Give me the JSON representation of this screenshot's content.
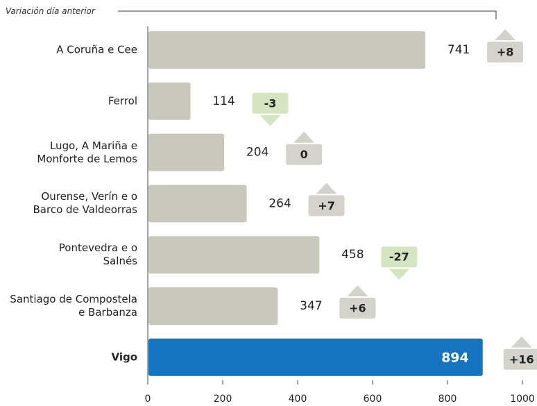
{
  "chart_data": {
    "type": "bar",
    "orientation": "horizontal",
    "subtitle": "Variación día anterior",
    "categories": [
      "A Coruña e Cee",
      "Ferrol",
      "Lugo, A Mariña e\nMonforte de Lemos",
      "Ourense, Verín e o\nBarco de Valdeorras",
      "Pontevedra e o\nSalnés",
      "Santiago de Compostela\ne Barbanza",
      "Vigo"
    ],
    "values": [
      741,
      114,
      204,
      264,
      458,
      347,
      894
    ],
    "colors": [
      "#c9c8bd",
      "#c9c8bd",
      "#c9c8bd",
      "#c9c8bd",
      "#c9c8bd",
      "#c9c8bd",
      "#1474bf"
    ],
    "highlight": [
      false,
      false,
      false,
      false,
      false,
      false,
      true
    ],
    "changes": {
      "values": [
        8,
        -3,
        0,
        7,
        -27,
        6,
        16
      ],
      "value_labels": [
        "+8",
        "-3",
        "0",
        "+7",
        "-27",
        "+6",
        "+16"
      ]
    },
    "up_color": "#d3d2cb",
    "down_color": "#d5e5c2",
    "xlim": [
      0,
      1000
    ],
    "xticks": [
      0,
      200,
      400,
      600,
      800,
      1000
    ]
  }
}
